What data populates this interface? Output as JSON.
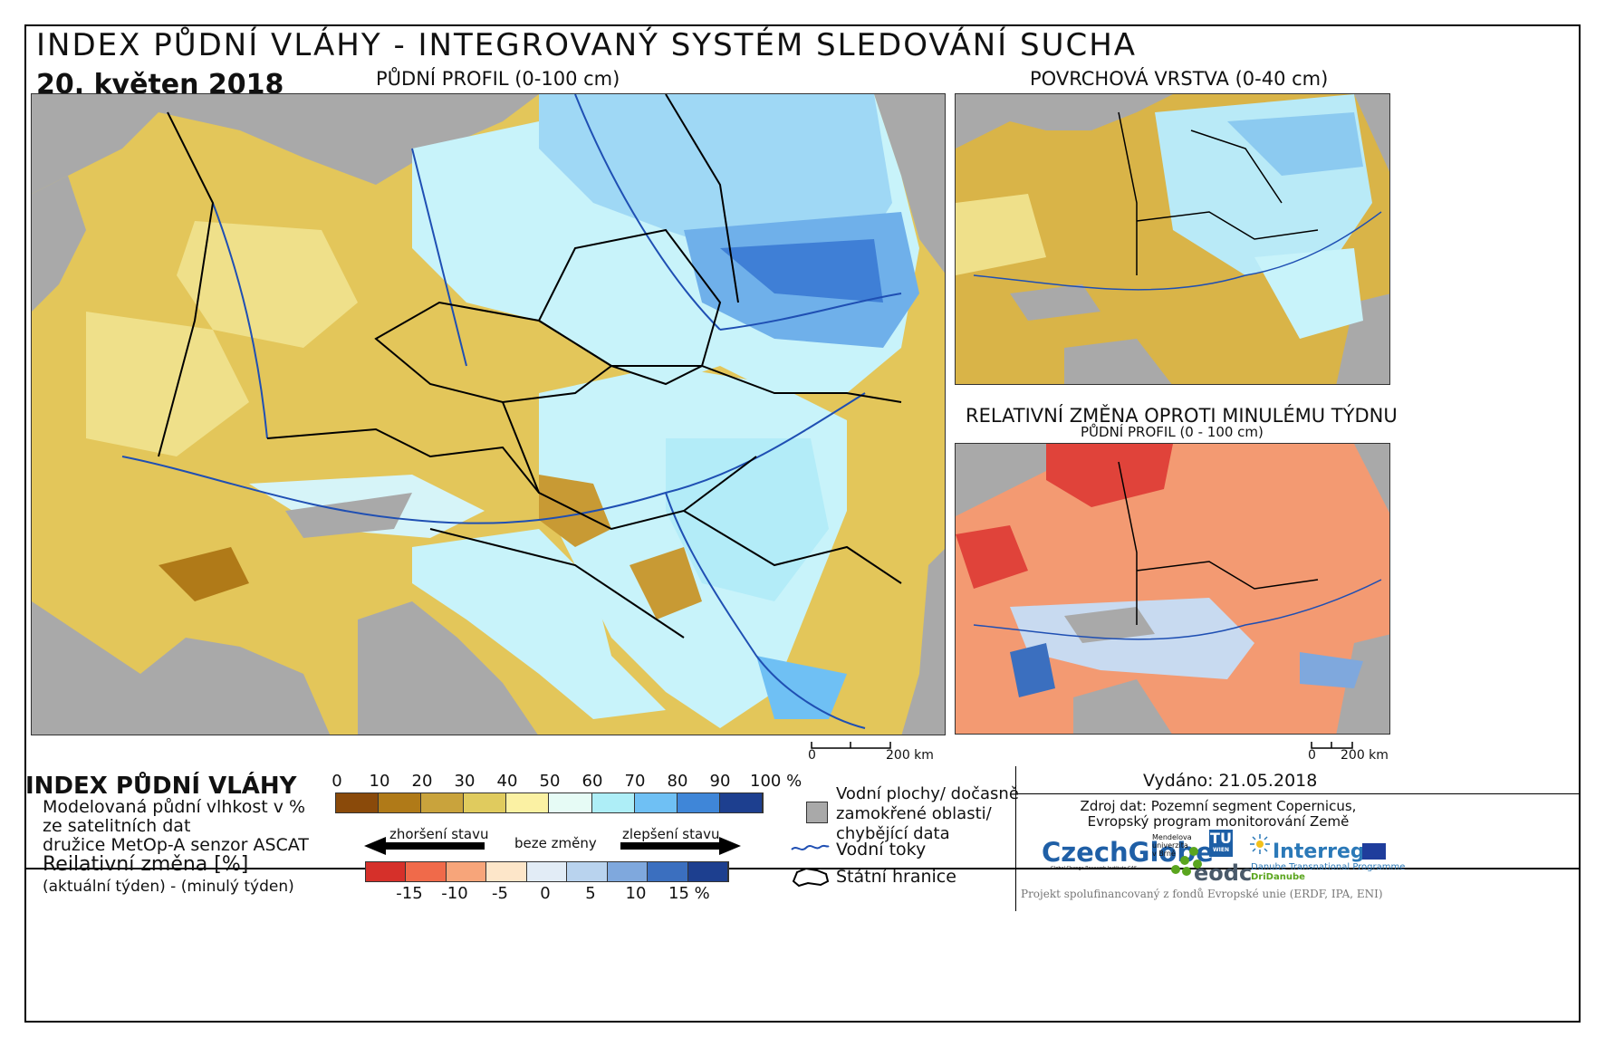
{
  "header": {
    "title": "INDEX PŮDNÍ VLÁHY - INTEGROVANÝ SYSTÉM SLEDOVÁNÍ SUCHA",
    "date": "20. květen 2018",
    "main_map_label": "PŮDNÍ PROFIL (0-100 cm)",
    "top_right_label": "POVRCHOVÁ VRSTVA (0-40 cm)",
    "bottom_right_label": "RELATIVNÍ ZMĚNA OPROTI MINULÉMU TÝDNU",
    "bottom_right_sublabel": "PŮDNÍ PROFIL (0 - 100 cm)"
  },
  "scalebars": {
    "main": {
      "zero": "0",
      "end": "200 km"
    },
    "small": {
      "zero": "0",
      "end": "200 km"
    }
  },
  "legend": {
    "index_title": "INDEX PŮDNÍ VLÁHY",
    "index_desc_1": "Modelovaná půdní vlhkost v %",
    "index_desc_2": "ze satelitních dat",
    "index_desc_3": "družice MetOp-A senzor ASCAT",
    "change_title": "Reilativní změna [%]",
    "change_desc": "(aktuální týden) - (minulý týden)",
    "index_ticks": [
      "0",
      "10",
      "20",
      "30",
      "40",
      "50",
      "60",
      "70",
      "80",
      "90",
      "100 %"
    ],
    "index_colors": [
      "#8a4a0a",
      "#b07a18",
      "#c9a33c",
      "#e0cb5e",
      "#fbf1a3",
      "#e6fbf5",
      "#aeeef7",
      "#6fc0f4",
      "#3f86d8",
      "#1d3f8f"
    ],
    "change_labels": {
      "worse": "zhoršení stavu",
      "none": "beze změny",
      "better": "zlepšení stavu"
    },
    "change_ticks": [
      "-15",
      "-10",
      "-5",
      "0",
      "5",
      "10",
      "15 %"
    ],
    "change_colors": [
      "#d6302a",
      "#f06a4a",
      "#f7a57a",
      "#fde6c9",
      "#e2ecf6",
      "#b9d3ee",
      "#7fa8dd",
      "#3b6fbf",
      "#1d3f8f"
    ],
    "water_label_1": "Vodní plochy/ dočasně",
    "water_label_2": "zamokřené oblasti/",
    "water_label_3": "chybějící data",
    "rivers_label": "Vodní toky",
    "borders_label": "Státní hranice"
  },
  "footer": {
    "issued": "Vydáno: 21.05.2018",
    "source_1": "Zdroj dat: Pozemní segment Copernicus,",
    "source_2": "Evropský program monitorování Země",
    "czechglobe": "CzechGlobe",
    "czechglobe_sub": "Global Change Research Institute CAS",
    "mendel_1": "Mendelova",
    "mendel_2": "univerzita",
    "mendel_3": "v Brně",
    "tu": "TU",
    "tu_sub": "WIEN",
    "eodc": "eodc",
    "interreg": "Interreg",
    "interreg_sub_1": "Danube Transnational Programme",
    "interreg_sub_2": "DriDanube",
    "project": "Projekt spolufinancovaný z fondů Evropské unie (ERDF, IPA, ENI)"
  },
  "colors": {
    "sea": "#a9a9a9",
    "dry": "#e6c458",
    "wet": "#aeeef7",
    "red": "#f07a55",
    "river": "#1f4fb3"
  }
}
